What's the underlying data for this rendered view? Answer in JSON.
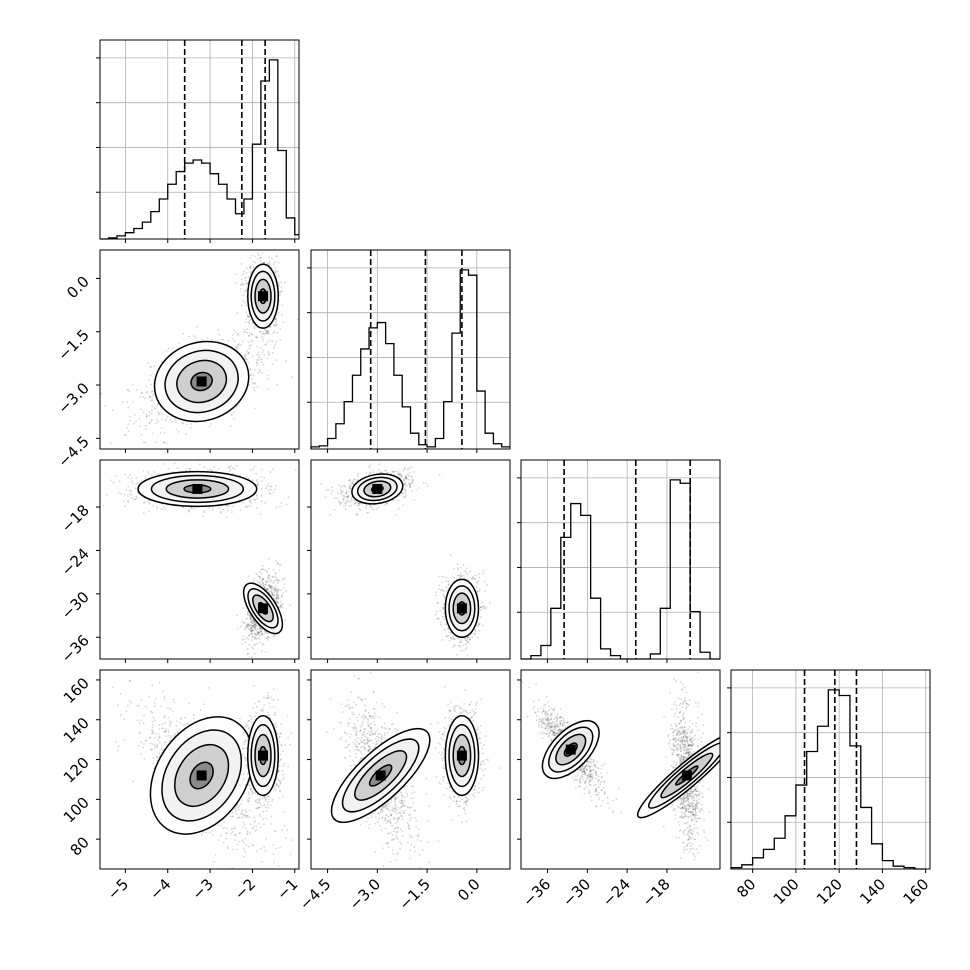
{
  "chart_data": [
    {
      "type": "histogram",
      "panel": "p1-marginal",
      "xlim": [
        -5.6,
        -0.9
      ],
      "bin_edges": [
        -5.6,
        -5.4,
        -5.2,
        -5.0,
        -4.8,
        -4.6,
        -4.4,
        -4.2,
        -4.0,
        -3.8,
        -3.6,
        -3.4,
        -3.2,
        -3.0,
        -2.8,
        -2.6,
        -2.4,
        -2.2,
        -2.0,
        -1.8,
        -1.6,
        -1.4,
        -1.2,
        -1.0,
        -0.9
      ],
      "counts": [
        0,
        1,
        3,
        6,
        10,
        16,
        26,
        38,
        52,
        64,
        72,
        75,
        72,
        62,
        52,
        38,
        24,
        38,
        90,
        150,
        170,
        84,
        20,
        4
      ],
      "quantiles": [
        -3.6,
        -2.25,
        -1.7
      ],
      "xticks": [
        -5,
        -4,
        -3,
        -2,
        -1
      ]
    },
    {
      "type": "histogram",
      "panel": "p2-marginal",
      "xlim": [
        -5.0,
        1.0
      ],
      "bin_edges": [
        -5.0,
        -4.75,
        -4.5,
        -4.25,
        -4.0,
        -3.75,
        -3.5,
        -3.25,
        -3.0,
        -2.75,
        -2.5,
        -2.25,
        -2.0,
        -1.75,
        -1.5,
        -1.25,
        -1.0,
        -0.75,
        -0.5,
        -0.25,
        0.0,
        0.25,
        0.5,
        0.75,
        1.0
      ],
      "counts": [
        2,
        3,
        10,
        24,
        45,
        70,
        95,
        115,
        120,
        100,
        70,
        40,
        15,
        4,
        2,
        10,
        45,
        110,
        170,
        165,
        55,
        15,
        5,
        2
      ],
      "quantiles": [
        -3.2,
        -1.55,
        -0.45
      ],
      "xticks": [
        -4.5,
        -3.0,
        -1.5,
        0.0
      ],
      "xtick_labels": [
        "−4.5",
        "−3.0",
        "−1.5",
        "0.0"
      ],
      "yticks": [
        0.0,
        -1.5,
        -3.0,
        -4.5
      ],
      "ytick_labels": [
        "0.0",
        "−1.5",
        "−3.0",
        "−4.5"
      ]
    },
    {
      "type": "histogram",
      "panel": "p3-marginal",
      "xlim": [
        -40.0,
        -10.0
      ],
      "bin_edges": [
        -40.0,
        -38.5,
        -37.0,
        -35.5,
        -34.0,
        -32.5,
        -31.0,
        -29.5,
        -28.0,
        -26.5,
        -25.0,
        -23.5,
        -22.0,
        -20.5,
        -19.0,
        -17.5,
        -16.0,
        -14.5,
        -13.0,
        -11.5,
        -10.0
      ],
      "counts": [
        0,
        2,
        8,
        30,
        72,
        92,
        85,
        36,
        6,
        2,
        0,
        0,
        0,
        3,
        30,
        106,
        104,
        28,
        4,
        0
      ],
      "quantiles": [
        -33.5,
        -22.7,
        -14.5
      ],
      "xticks": [
        -36,
        -30,
        -24,
        -18
      ],
      "xtick_labels": [
        "−36",
        "−30",
        "−24",
        "−18"
      ],
      "yticks": [
        -18,
        -24,
        -30,
        -36
      ],
      "ytick_labels": [
        "−18",
        "−24",
        "−30",
        "−36"
      ]
    },
    {
      "type": "histogram",
      "panel": "p4-marginal",
      "xlim": [
        70,
        162
      ],
      "bin_edges": [
        70,
        75,
        80,
        85,
        90,
        95,
        100,
        105,
        110,
        115,
        120,
        125,
        130,
        135,
        140,
        145,
        150,
        155,
        160
      ],
      "counts": [
        1,
        3,
        8,
        14,
        22,
        38,
        60,
        84,
        102,
        128,
        124,
        88,
        44,
        18,
        6,
        2,
        1,
        0
      ],
      "quantiles": [
        104,
        118,
        128
      ],
      "xticks": [
        80,
        100,
        120,
        140,
        160
      ],
      "yticks": [
        160,
        140,
        120,
        100,
        80
      ]
    },
    {
      "type": "scatter-density",
      "panel": "p1-vs-p2",
      "clusters": [
        {
          "center": [
            -1.75,
            -0.5
          ],
          "spread": [
            0.18,
            0.45
          ]
        },
        {
          "center": [
            -3.2,
            -2.9
          ],
          "spread": [
            0.7,
            0.55
          ]
        }
      ]
    },
    {
      "type": "scatter-density",
      "panel": "p1-vs-p3",
      "clusters": [
        {
          "center": [
            -3.3,
            -15.5
          ],
          "spread": [
            0.7,
            1.2
          ]
        },
        {
          "center": [
            -1.75,
            -32.0
          ],
          "spread": [
            0.18,
            2.0
          ]
        }
      ]
    },
    {
      "type": "scatter-density",
      "panel": "p2-vs-p3",
      "clusters": [
        {
          "center": [
            -3.0,
            -15.5
          ],
          "spread": [
            0.45,
            1.0
          ]
        },
        {
          "center": [
            -0.45,
            -32.0
          ],
          "spread": [
            0.25,
            2.0
          ]
        }
      ]
    },
    {
      "type": "scatter-density",
      "panel": "p1-vs-p4",
      "clusters": [
        {
          "center": [
            -3.2,
            112
          ],
          "spread": [
            0.7,
            16
          ]
        },
        {
          "center": [
            -1.75,
            122
          ],
          "spread": [
            0.18,
            10
          ]
        }
      ]
    },
    {
      "type": "scatter-density",
      "panel": "p2-vs-p4",
      "clusters": [
        {
          "center": [
            -2.9,
            112
          ],
          "spread": [
            0.45,
            16
          ]
        },
        {
          "center": [
            -0.45,
            122
          ],
          "spread": [
            0.25,
            10
          ]
        }
      ]
    },
    {
      "type": "scatter-density",
      "panel": "p3-vs-p4",
      "clusters": [
        {
          "center": [
            -32.5,
            125
          ],
          "spread": [
            2.0,
            9
          ]
        },
        {
          "center": [
            -15.0,
            112
          ],
          "spread": [
            1.0,
            16
          ]
        }
      ]
    }
  ]
}
